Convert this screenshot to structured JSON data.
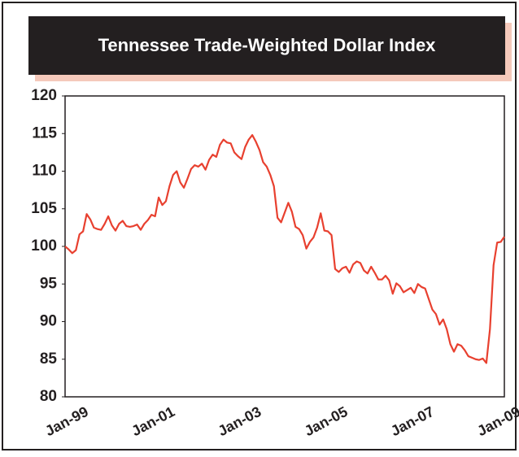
{
  "chart_data": {
    "type": "line",
    "title": "Tennessee Trade-Weighted Dollar Index",
    "categories": [
      "Jan-99",
      null,
      null,
      null,
      null,
      null,
      null,
      null,
      null,
      null,
      null,
      null,
      null,
      null,
      null,
      null,
      null,
      null,
      null,
      null,
      null,
      null,
      null,
      null,
      "Jan-01",
      null,
      null,
      null,
      null,
      null,
      null,
      null,
      null,
      null,
      null,
      null,
      null,
      null,
      null,
      null,
      null,
      null,
      null,
      null,
      null,
      null,
      null,
      null,
      "Jan-03",
      null,
      null,
      null,
      null,
      null,
      null,
      null,
      null,
      null,
      null,
      null,
      null,
      null,
      null,
      null,
      null,
      null,
      null,
      null,
      null,
      null,
      null,
      null,
      "Jan-05",
      null,
      null,
      null,
      null,
      null,
      null,
      null,
      null,
      null,
      null,
      null,
      null,
      null,
      null,
      null,
      null,
      null,
      null,
      null,
      null,
      null,
      null,
      null,
      "Jan-07",
      null,
      null,
      null,
      null,
      null,
      null,
      null,
      null,
      null,
      null,
      null,
      null,
      null,
      null,
      null,
      null,
      null,
      null,
      null,
      null,
      null,
      null,
      null,
      "Jan-09",
      null,
      null
    ],
    "values": [
      100,
      99.6,
      99.1,
      99.5,
      101.6,
      102,
      104.3,
      103.6,
      102.5,
      102.3,
      102.2,
      103,
      104,
      102.8,
      102.1,
      103,
      103.4,
      102.7,
      102.6,
      102.7,
      102.9,
      102.2,
      103,
      103.5,
      104.2,
      104,
      106.5,
      105.5,
      106,
      108,
      109.5,
      110,
      108.5,
      107.8,
      109,
      110.3,
      110.8,
      110.6,
      111,
      110.2,
      111.5,
      112.2,
      111.9,
      113.5,
      114.2,
      113.8,
      113.7,
      112.5,
      112,
      111.6,
      113.2,
      114.2,
      114.8,
      113.9,
      112.8,
      111.2,
      110.6,
      109.5,
      108,
      103.8,
      103.2,
      104.5,
      105.8,
      104.6,
      102.6,
      102.3,
      101.5,
      99.7,
      100.6,
      101.2,
      102.5,
      104.4,
      102.1,
      102,
      101.5,
      97,
      96.6,
      97.1,
      97.3,
      96.5,
      97.6,
      98,
      97.8,
      96.8,
      96.4,
      97.3,
      96.5,
      95.6,
      95.6,
      96.1,
      95.5,
      93.7,
      95.1,
      94.7,
      93.9,
      94.2,
      94.5,
      93.8,
      95,
      94.6,
      94.4,
      93,
      91.6,
      91,
      89.6,
      90.3,
      89,
      87,
      86,
      87,
      86.8,
      86.2,
      85.4,
      85.2,
      85,
      84.9,
      85.1,
      84.5,
      89,
      97.5,
      100.5,
      100.6,
      101.3
    ],
    "color": "#e8402f",
    "ylim": [
      80,
      120
    ],
    "yticks": [
      80,
      85,
      90,
      95,
      100,
      105,
      110,
      115,
      120
    ],
    "grid": false
  }
}
